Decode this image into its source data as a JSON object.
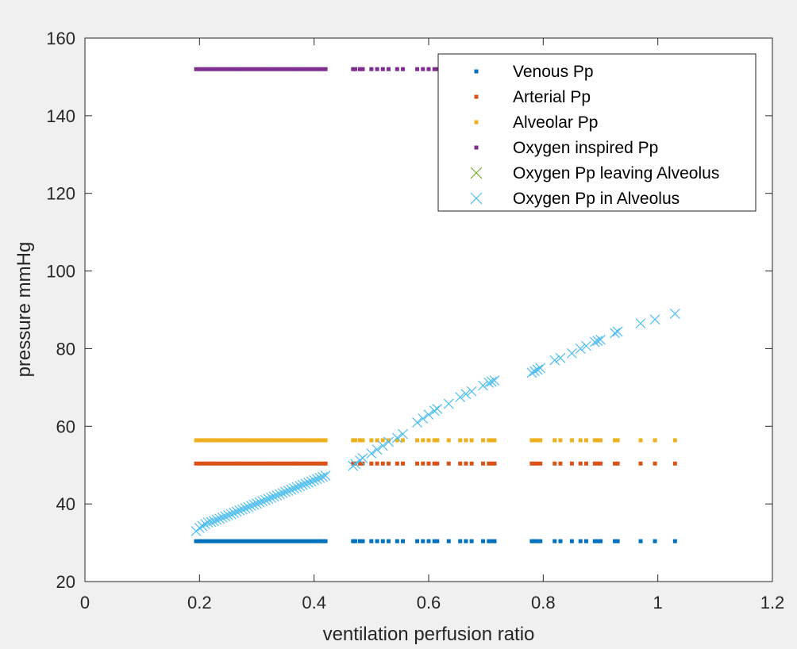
{
  "chart_data": {
    "type": "scatter",
    "title": "",
    "xlabel": "ventilation perfusion ratio",
    "ylabel": "pressure mmHg",
    "xlim": [
      0,
      1.2
    ],
    "ylim": [
      20,
      160
    ],
    "x_ticks": [
      0,
      0.2,
      0.4,
      0.6,
      0.8,
      1,
      1.2
    ],
    "x_tick_labels": [
      "0",
      "0.2",
      "0.4",
      "0.6",
      "0.8",
      "1",
      "1.2"
    ],
    "y_ticks": [
      20,
      40,
      60,
      80,
      100,
      120,
      140,
      160
    ],
    "y_tick_labels": [
      "20",
      "40",
      "60",
      "80",
      "100",
      "120",
      "140",
      "160"
    ],
    "grid": false,
    "legend_position": "top-right",
    "x": [
      0.194,
      0.2,
      0.205,
      0.21,
      0.215,
      0.22,
      0.225,
      0.23,
      0.235,
      0.24,
      0.245,
      0.25,
      0.255,
      0.26,
      0.265,
      0.27,
      0.275,
      0.28,
      0.285,
      0.29,
      0.295,
      0.3,
      0.305,
      0.31,
      0.315,
      0.32,
      0.325,
      0.33,
      0.335,
      0.34,
      0.345,
      0.35,
      0.355,
      0.36,
      0.365,
      0.37,
      0.375,
      0.38,
      0.385,
      0.39,
      0.395,
      0.4,
      0.405,
      0.41,
      0.415,
      0.42,
      0.468,
      0.472,
      0.48,
      0.485,
      0.5,
      0.51,
      0.52,
      0.53,
      0.545,
      0.555,
      0.58,
      0.59,
      0.6,
      0.61,
      0.615,
      0.635,
      0.655,
      0.665,
      0.675,
      0.695,
      0.705,
      0.71,
      0.715,
      0.78,
      0.785,
      0.79,
      0.795,
      0.82,
      0.83,
      0.85,
      0.865,
      0.875,
      0.89,
      0.895,
      0.9,
      0.925,
      0.93,
      0.97,
      0.995,
      1.03
    ],
    "series": [
      {
        "name": "Venous Pp",
        "marker": "dot",
        "color": "#0072BD",
        "y_constant": 30.4
      },
      {
        "name": "Arterial Pp",
        "marker": "dot",
        "color": "#D95319",
        "y_constant": 50.4
      },
      {
        "name": "Alveolar Pp",
        "marker": "dot",
        "color": "#EDB120",
        "y_constant": 56.4
      },
      {
        "name": "Oxygen inspired Pp",
        "marker": "dot",
        "color": "#7E2F8E",
        "y_constant": 152
      },
      {
        "name": "Oxygen Pp leaving Alveolus",
        "marker": "x",
        "color": "#77AC30",
        "y_values": []
      },
      {
        "name": "Oxygen Pp in Alveolus",
        "marker": "x",
        "color": "#4DBEEE",
        "y_values": [
          33,
          33.8,
          34.3,
          34.8,
          35.2,
          35.4,
          35.6,
          35.9,
          36.2,
          36.5,
          36.8,
          37.1,
          37.4,
          37.7,
          38,
          38.3,
          38.6,
          38.9,
          39.2,
          39.5,
          39.8,
          40.1,
          40.4,
          40.7,
          41,
          41.3,
          41.6,
          41.9,
          42.2,
          42.5,
          42.8,
          43.1,
          43.4,
          43.7,
          44,
          44.3,
          44.6,
          44.9,
          45.2,
          45.5,
          45.8,
          46.1,
          46.4,
          46.7,
          47,
          47.3,
          49.8,
          50.3,
          51.2,
          51.8,
          53,
          54,
          55,
          56,
          57,
          58,
          61,
          62,
          63,
          64,
          64.5,
          65.8,
          67.5,
          68.3,
          69,
          70.5,
          71.2,
          71.5,
          71.8,
          73.8,
          74.2,
          74.6,
          75,
          77,
          77.6,
          78.8,
          80,
          80.7,
          81.7,
          82,
          82.3,
          84,
          84.4,
          86.5,
          87.5,
          89
        ]
      }
    ]
  }
}
